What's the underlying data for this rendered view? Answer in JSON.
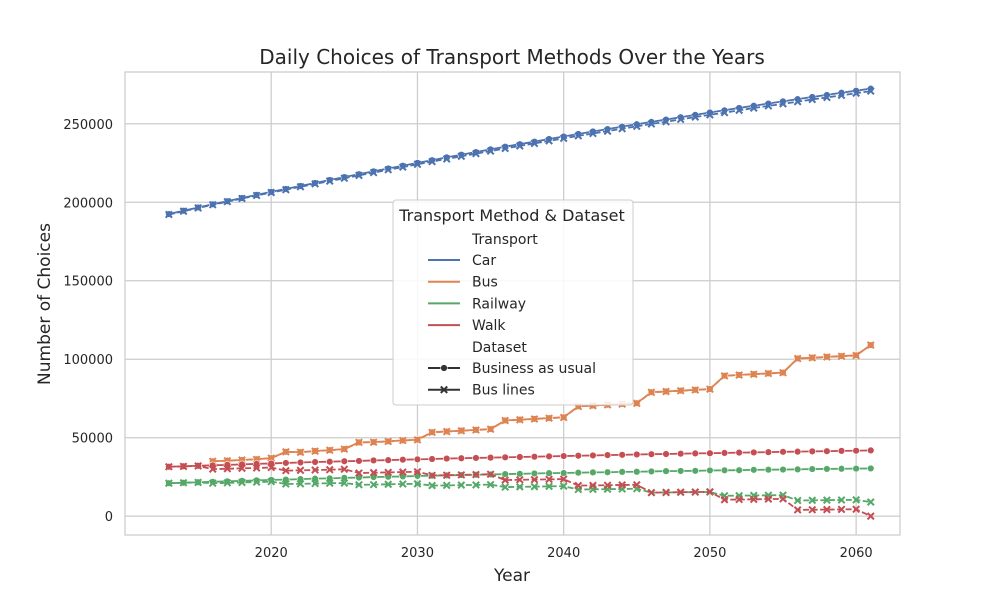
{
  "chart_data": {
    "type": "line",
    "title": "Daily Choices of Transport Methods Over the Years",
    "xlabel": "Year",
    "ylabel": "Number of Choices",
    "xlim": [
      2010,
      2063
    ],
    "ylim": [
      -12000,
      283000
    ],
    "xticks": [
      2020,
      2030,
      2040,
      2050,
      2060
    ],
    "yticks": [
      0,
      50000,
      100000,
      150000,
      200000,
      250000
    ],
    "grid": true,
    "legend": {
      "title": "Transport Method & Dataset",
      "placement": "center",
      "transport_header": "Transport",
      "dataset_header": "Dataset",
      "transport_entries": [
        {
          "label": "Car",
          "color": "#4c72b0"
        },
        {
          "label": "Bus",
          "color": "#dd8452"
        },
        {
          "label": "Railway",
          "color": "#55a868"
        },
        {
          "label": "Walk",
          "color": "#c44e52"
        }
      ],
      "dataset_entries": [
        {
          "label": "Business as usual",
          "marker": "circle"
        },
        {
          "label": "Bus lines",
          "marker": "x"
        }
      ]
    },
    "series": [
      {
        "transport": "Car",
        "dataset": "Business as usual",
        "color": "#4c72b0",
        "marker": "circle",
        "x": [
          2013,
          2014,
          2015,
          2016,
          2017,
          2018,
          2019,
          2020,
          2021,
          2022,
          2023,
          2024,
          2025,
          2026,
          2027,
          2028,
          2029,
          2030,
          2031,
          2032,
          2033,
          2034,
          2035,
          2036,
          2037,
          2038,
          2039,
          2040,
          2041,
          2042,
          2043,
          2044,
          2045,
          2046,
          2047,
          2048,
          2049,
          2050,
          2051,
          2052,
          2053,
          2054,
          2055,
          2056,
          2057,
          2058,
          2059,
          2060,
          2061
        ],
        "y": [
          192500,
          194600,
          196700,
          198700,
          200700,
          202700,
          204700,
          206600,
          208500,
          210400,
          212300,
          214200,
          216000,
          217900,
          219700,
          221500,
          223300,
          225100,
          226800,
          228600,
          230300,
          232000,
          233700,
          235400,
          237000,
          238600,
          240300,
          241900,
          243500,
          245100,
          246600,
          248200,
          249700,
          251200,
          252700,
          254200,
          255700,
          257200,
          258600,
          260100,
          261500,
          262900,
          264300,
          265700,
          267100,
          268400,
          269800,
          271100,
          272400
        ]
      },
      {
        "transport": "Car",
        "dataset": "Bus lines",
        "color": "#4c72b0",
        "marker": "x",
        "x": [
          2013,
          2014,
          2015,
          2016,
          2017,
          2018,
          2019,
          2020,
          2021,
          2022,
          2023,
          2024,
          2025,
          2026,
          2027,
          2028,
          2029,
          2030,
          2031,
          2032,
          2033,
          2034,
          2035,
          2036,
          2037,
          2038,
          2039,
          2040,
          2041,
          2042,
          2043,
          2044,
          2045,
          2046,
          2047,
          2048,
          2049,
          2050,
          2051,
          2052,
          2053,
          2054,
          2055,
          2056,
          2057,
          2058,
          2059,
          2060,
          2061
        ],
        "y": [
          192200,
          194300,
          196400,
          198400,
          200400,
          202400,
          204300,
          206200,
          208000,
          209900,
          211700,
          213500,
          215300,
          217100,
          218900,
          220700,
          222400,
          224200,
          225900,
          227600,
          229300,
          231000,
          232600,
          234300,
          235900,
          237500,
          239100,
          240700,
          242300,
          243800,
          245300,
          246900,
          248400,
          249900,
          251300,
          252800,
          254300,
          255700,
          257100,
          258600,
          260000,
          261400,
          262700,
          264100,
          265500,
          266800,
          268100,
          269500,
          270800
        ]
      },
      {
        "transport": "Bus",
        "dataset": "Business as usual",
        "color": "#dd8452",
        "marker": "circle",
        "x": [
          2016,
          2017,
          2018,
          2019,
          2020,
          2021,
          2022,
          2023,
          2024,
          2025,
          2026,
          2027,
          2028,
          2029,
          2030,
          2031,
          2032,
          2033,
          2034,
          2035,
          2036,
          2037,
          2038,
          2039,
          2040,
          2041,
          2042,
          2043,
          2044,
          2045,
          2046,
          2047,
          2048,
          2049,
          2050,
          2051,
          2052,
          2053,
          2054,
          2055,
          2056,
          2057,
          2058,
          2059,
          2060,
          2061
        ],
        "y": [
          35000,
          35400,
          35800,
          36300,
          37000,
          41000,
          40800,
          41500,
          42100,
          42800,
          47000,
          47200,
          47700,
          48300,
          48700,
          53500,
          54000,
          54500,
          55000,
          55500,
          61000,
          61500,
          62000,
          62500,
          63000,
          70000,
          70500,
          71000,
          71500,
          72000,
          79000,
          79500,
          80000,
          80500,
          81000,
          89500,
          90000,
          90500,
          91000,
          91500,
          100500,
          101000,
          101500,
          102000,
          102500,
          109000
        ]
      },
      {
        "transport": "Bus",
        "dataset": "Bus lines",
        "color": "#dd8452",
        "marker": "x",
        "x": [
          2016,
          2017,
          2018,
          2019,
          2020,
          2021,
          2022,
          2023,
          2024,
          2025,
          2026,
          2027,
          2028,
          2029,
          2030,
          2031,
          2032,
          2033,
          2034,
          2035,
          2036,
          2037,
          2038,
          2039,
          2040,
          2041,
          2042,
          2043,
          2044,
          2045,
          2046,
          2047,
          2048,
          2049,
          2050,
          2051,
          2052,
          2053,
          2054,
          2055,
          2056,
          2057,
          2058,
          2059,
          2060,
          2061
        ],
        "y": [
          35000,
          35300,
          35800,
          36200,
          37000,
          41000,
          40700,
          41400,
          42000,
          42700,
          47000,
          47100,
          47600,
          48200,
          48600,
          53400,
          53900,
          54400,
          54900,
          55400,
          60900,
          61400,
          61900,
          62400,
          62900,
          69900,
          70400,
          70900,
          71400,
          71900,
          78900,
          79400,
          79900,
          80400,
          80900,
          89400,
          89900,
          90400,
          90900,
          91400,
          100400,
          100900,
          101400,
          101900,
          102400,
          109000
        ]
      },
      {
        "transport": "Railway",
        "dataset": "Business as usual",
        "color": "#55a868",
        "marker": "circle",
        "x": [
          2013,
          2014,
          2015,
          2016,
          2017,
          2018,
          2019,
          2020,
          2021,
          2022,
          2023,
          2024,
          2025,
          2026,
          2027,
          2028,
          2029,
          2030,
          2031,
          2032,
          2033,
          2034,
          2035,
          2036,
          2037,
          2038,
          2039,
          2040,
          2041,
          2042,
          2043,
          2044,
          2045,
          2046,
          2047,
          2048,
          2049,
          2050,
          2051,
          2052,
          2053,
          2054,
          2055,
          2056,
          2057,
          2058,
          2059,
          2060,
          2061
        ],
        "y": [
          21000,
          21300,
          21600,
          21900,
          22200,
          22500,
          22800,
          23100,
          23300,
          23600,
          23900,
          24100,
          24400,
          24600,
          24900,
          25100,
          25300,
          25600,
          25800,
          26000,
          26200,
          26400,
          26600,
          26800,
          27000,
          27200,
          27400,
          27500,
          27700,
          27900,
          28000,
          28200,
          28300,
          28500,
          28700,
          28800,
          28900,
          29100,
          29200,
          29300,
          29500,
          29600,
          29700,
          29800,
          30000,
          30100,
          30200,
          30300,
          30400
        ]
      },
      {
        "transport": "Railway",
        "dataset": "Bus lines",
        "color": "#55a868",
        "marker": "x",
        "x": [
          2013,
          2014,
          2015,
          2016,
          2017,
          2018,
          2019,
          2020,
          2021,
          2022,
          2023,
          2024,
          2025,
          2026,
          2027,
          2028,
          2029,
          2030,
          2031,
          2032,
          2033,
          2034,
          2035,
          2036,
          2037,
          2038,
          2039,
          2040,
          2041,
          2042,
          2043,
          2044,
          2045,
          2046,
          2047,
          2048,
          2049,
          2050,
          2051,
          2052,
          2053,
          2054,
          2055,
          2056,
          2057,
          2058,
          2059,
          2060,
          2061
        ],
        "y": [
          21000,
          21300,
          21500,
          21000,
          21200,
          21500,
          21700,
          22000,
          20500,
          20600,
          20800,
          21000,
          21100,
          20000,
          20100,
          20300,
          20500,
          20600,
          19500,
          19600,
          19800,
          19900,
          20100,
          18500,
          18700,
          18800,
          19000,
          19100,
          17000,
          17100,
          17200,
          17300,
          17500,
          15000,
          15100,
          15200,
          15300,
          15400,
          13000,
          13100,
          13200,
          13300,
          13400,
          10000,
          10100,
          10200,
          10300,
          10400,
          9000
        ]
      },
      {
        "transport": "Walk",
        "dataset": "Business as usual",
        "color": "#c44e52",
        "marker": "circle",
        "x": [
          2013,
          2014,
          2015,
          2016,
          2017,
          2018,
          2019,
          2020,
          2021,
          2022,
          2023,
          2024,
          2025,
          2026,
          2027,
          2028,
          2029,
          2030,
          2031,
          2032,
          2033,
          2034,
          2035,
          2036,
          2037,
          2038,
          2039,
          2040,
          2041,
          2042,
          2043,
          2044,
          2045,
          2046,
          2047,
          2048,
          2049,
          2050,
          2051,
          2052,
          2053,
          2054,
          2055,
          2056,
          2057,
          2058,
          2059,
          2060,
          2061
        ],
        "y": [
          31500,
          31800,
          32100,
          32400,
          32700,
          33000,
          33300,
          33600,
          33900,
          34200,
          34500,
          34700,
          35000,
          35200,
          35500,
          35700,
          36000,
          36200,
          36400,
          36700,
          36900,
          37100,
          37300,
          37500,
          37700,
          37900,
          38100,
          38300,
          38500,
          38700,
          38900,
          39100,
          39300,
          39500,
          39600,
          39800,
          40000,
          40100,
          40300,
          40500,
          40600,
          40800,
          41000,
          41100,
          41300,
          41400,
          41600,
          41700,
          41900
        ]
      },
      {
        "transport": "Walk",
        "dataset": "Bus lines",
        "color": "#c44e52",
        "marker": "x",
        "x": [
          2013,
          2014,
          2015,
          2016,
          2017,
          2018,
          2019,
          2020,
          2021,
          2022,
          2023,
          2024,
          2025,
          2026,
          2027,
          2028,
          2029,
          2030,
          2031,
          2032,
          2033,
          2034,
          2035,
          2036,
          2037,
          2038,
          2039,
          2040,
          2041,
          2042,
          2043,
          2044,
          2045,
          2046,
          2047,
          2048,
          2049,
          2050,
          2051,
          2052,
          2053,
          2054,
          2055,
          2056,
          2057,
          2058,
          2059,
          2060,
          2061
        ],
        "y": [
          31500,
          31700,
          32000,
          30000,
          30200,
          30500,
          30700,
          31000,
          29000,
          29200,
          29400,
          29600,
          29900,
          27500,
          27700,
          27900,
          28100,
          28300,
          26000,
          26100,
          26300,
          26500,
          26700,
          23000,
          23200,
          23300,
          23500,
          23600,
          19500,
          19600,
          19700,
          19900,
          20000,
          15000,
          15100,
          15300,
          15400,
          15500,
          10500,
          10600,
          10700,
          10900,
          11000,
          4000,
          4100,
          4200,
          4300,
          4400,
          0
        ]
      }
    ]
  }
}
